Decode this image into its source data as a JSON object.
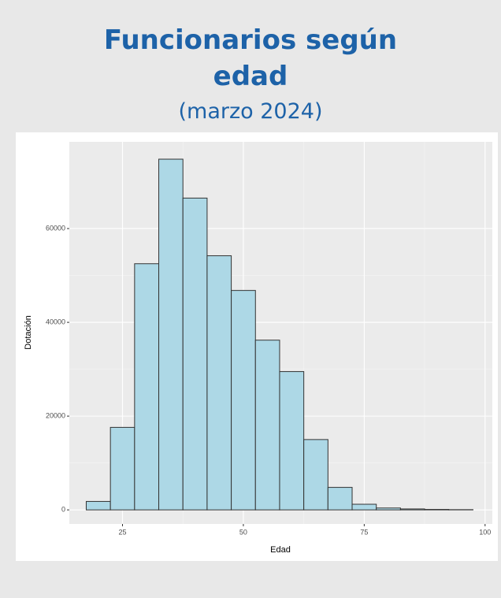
{
  "chart_data": {
    "type": "histogram",
    "title": "Funcionarios según edad",
    "subtitle": "(marzo 2024)",
    "x_label": "Edad",
    "y_label": "Dotación",
    "bins": [
      17.5,
      22.5,
      27.5,
      32.5,
      37.5,
      42.5,
      47.5,
      52.5,
      57.5,
      62.5,
      67.5,
      72.5,
      77.5,
      82.5,
      87.5,
      92.5,
      97.5
    ],
    "values": [
      1800,
      17600,
      52500,
      74800,
      66500,
      54200,
      46800,
      36200,
      29500,
      15000,
      4800,
      1200,
      400,
      200,
      100,
      50
    ],
    "color": "#add8e6",
    "xlim": [
      14,
      101.5
    ],
    "xticks": [
      25,
      50,
      75,
      100
    ],
    "ylim": [
      -3000,
      78500
    ],
    "yticks": [
      0,
      20000,
      40000,
      60000
    ],
    "grid": true
  }
}
